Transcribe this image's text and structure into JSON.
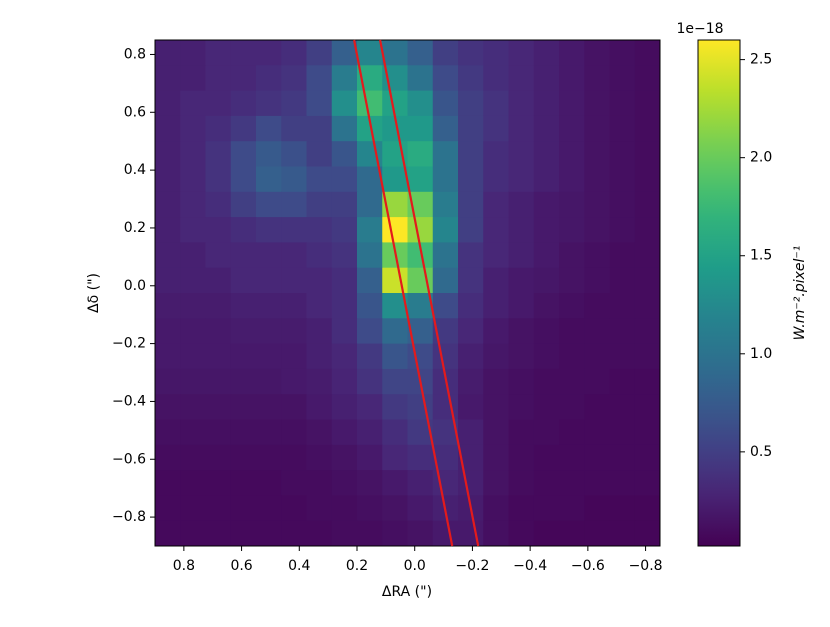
{
  "chart_data": {
    "type": "heatmap",
    "x_label": "ΔRA (\")",
    "y_label": "Δδ (\")",
    "xlim": [
      0.9,
      -0.85
    ],
    "ylim": [
      -0.9,
      0.85
    ],
    "xticks": [
      0.8,
      0.6,
      0.4,
      0.2,
      {
        "value": 0,
        "label": "0.0"
      },
      {
        "value": -0.2,
        "label": "−0.2"
      },
      {
        "value": -0.4,
        "label": "−0.4"
      },
      {
        "value": -0.6,
        "label": "−0.6"
      },
      {
        "value": -0.8,
        "label": "−0.8"
      }
    ],
    "yticks": [
      {
        "value": -0.8,
        "label": "−0.8"
      },
      {
        "value": -0.6,
        "label": "−0.6"
      },
      {
        "value": -0.4,
        "label": "−0.4"
      },
      {
        "value": -0.2,
        "label": "−0.2"
      },
      {
        "value": 0,
        "label": "0.0"
      },
      0.2,
      0.4,
      0.6,
      0.8
    ],
    "colormap": "viridis",
    "z": [
      [
        0.25,
        0.25,
        0.3,
        0.3,
        0.3,
        0.35,
        0.5,
        0.8,
        1.2,
        1.0,
        0.8,
        0.5,
        0.4,
        0.35,
        0.3,
        0.25,
        0.2,
        0.15,
        0.12,
        0.1
      ],
      [
        0.25,
        0.25,
        0.3,
        0.3,
        0.35,
        0.4,
        0.6,
        1.1,
        1.6,
        1.3,
        1.0,
        0.6,
        0.45,
        0.35,
        0.3,
        0.25,
        0.2,
        0.15,
        0.12,
        0.1
      ],
      [
        0.25,
        0.3,
        0.3,
        0.35,
        0.4,
        0.45,
        0.6,
        1.3,
        1.8,
        1.5,
        1.3,
        0.7,
        0.5,
        0.4,
        0.3,
        0.25,
        0.2,
        0.15,
        0.12,
        0.1
      ],
      [
        0.25,
        0.3,
        0.35,
        0.45,
        0.6,
        0.5,
        0.5,
        1.0,
        1.5,
        1.4,
        1.4,
        0.8,
        0.5,
        0.4,
        0.3,
        0.25,
        0.2,
        0.15,
        0.12,
        0.1
      ],
      [
        0.25,
        0.3,
        0.4,
        0.6,
        0.75,
        0.65,
        0.5,
        0.7,
        1.2,
        1.5,
        1.6,
        1.0,
        0.5,
        0.35,
        0.3,
        0.25,
        0.2,
        0.15,
        0.12,
        0.1
      ],
      [
        0.25,
        0.3,
        0.4,
        0.6,
        0.8,
        0.75,
        0.6,
        0.6,
        0.9,
        1.4,
        1.5,
        1.0,
        0.5,
        0.35,
        0.3,
        0.25,
        0.2,
        0.15,
        0.12,
        0.1
      ],
      [
        0.25,
        0.3,
        0.35,
        0.5,
        0.6,
        0.6,
        0.5,
        0.5,
        0.9,
        2.2,
        2.0,
        1.1,
        0.5,
        0.3,
        0.25,
        0.2,
        0.18,
        0.15,
        0.12,
        0.1
      ],
      [
        0.25,
        0.3,
        0.3,
        0.35,
        0.4,
        0.4,
        0.4,
        0.45,
        1.1,
        2.6,
        2.2,
        1.2,
        0.5,
        0.3,
        0.25,
        0.2,
        0.18,
        0.15,
        0.12,
        0.1
      ],
      [
        0.25,
        0.25,
        0.3,
        0.3,
        0.3,
        0.3,
        0.35,
        0.4,
        1.0,
        2.0,
        1.8,
        1.0,
        0.4,
        0.3,
        0.25,
        0.2,
        0.15,
        0.12,
        0.1,
        0.1
      ],
      [
        0.25,
        0.25,
        0.25,
        0.3,
        0.3,
        0.3,
        0.3,
        0.35,
        0.8,
        2.4,
        2.0,
        0.9,
        0.4,
        0.25,
        0.2,
        0.18,
        0.15,
        0.12,
        0.1,
        0.1
      ],
      [
        0.22,
        0.22,
        0.22,
        0.25,
        0.25,
        0.25,
        0.3,
        0.35,
        0.7,
        1.3,
        1.1,
        0.6,
        0.35,
        0.25,
        0.2,
        0.15,
        0.12,
        0.1,
        0.1,
        0.1
      ],
      [
        0.2,
        0.2,
        0.2,
        0.22,
        0.22,
        0.22,
        0.25,
        0.35,
        0.6,
        0.9,
        0.8,
        0.45,
        0.3,
        0.2,
        0.15,
        0.12,
        0.1,
        0.1,
        0.1,
        0.1
      ],
      [
        0.2,
        0.2,
        0.2,
        0.2,
        0.2,
        0.2,
        0.25,
        0.3,
        0.45,
        0.7,
        0.6,
        0.4,
        0.25,
        0.18,
        0.15,
        0.12,
        0.1,
        0.1,
        0.1,
        0.1
      ],
      [
        0.18,
        0.18,
        0.18,
        0.18,
        0.18,
        0.2,
        0.22,
        0.28,
        0.4,
        0.55,
        0.55,
        0.35,
        0.22,
        0.15,
        0.12,
        0.1,
        0.1,
        0.1,
        0.08,
        0.08
      ],
      [
        0.15,
        0.15,
        0.15,
        0.15,
        0.15,
        0.15,
        0.2,
        0.25,
        0.3,
        0.45,
        0.5,
        0.35,
        0.2,
        0.15,
        0.12,
        0.1,
        0.1,
        0.08,
        0.08,
        0.08
      ],
      [
        0.12,
        0.12,
        0.12,
        0.12,
        0.12,
        0.12,
        0.15,
        0.2,
        0.25,
        0.35,
        0.45,
        0.4,
        0.25,
        0.15,
        0.1,
        0.1,
        0.08,
        0.08,
        0.08,
        0.08
      ],
      [
        0.1,
        0.1,
        0.1,
        0.1,
        0.1,
        0.1,
        0.12,
        0.15,
        0.2,
        0.3,
        0.35,
        0.35,
        0.25,
        0.15,
        0.1,
        0.08,
        0.08,
        0.08,
        0.08,
        0.08
      ],
      [
        0.08,
        0.08,
        0.08,
        0.08,
        0.08,
        0.1,
        0.1,
        0.12,
        0.15,
        0.2,
        0.25,
        0.3,
        0.25,
        0.15,
        0.1,
        0.08,
        0.08,
        0.08,
        0.08,
        0.08
      ],
      [
        0.08,
        0.08,
        0.08,
        0.08,
        0.08,
        0.08,
        0.1,
        0.1,
        0.12,
        0.15,
        0.2,
        0.25,
        0.22,
        0.12,
        0.08,
        0.08,
        0.08,
        0.06,
        0.06,
        0.06
      ],
      [
        0.08,
        0.08,
        0.08,
        0.08,
        0.08,
        0.08,
        0.08,
        0.1,
        0.1,
        0.12,
        0.15,
        0.2,
        0.2,
        0.12,
        0.08,
        0.06,
        0.06,
        0.06,
        0.06,
        0.06
      ]
    ],
    "colorbar": {
      "clim": [
        0.02,
        2.6
      ],
      "ticks": [
        0.5,
        {
          "value": 1,
          "label": "1.0"
        },
        1.5,
        {
          "value": 2,
          "label": "2.0"
        },
        2.5
      ],
      "offset": "1e−18",
      "label": "W.m⁻².pixel⁻¹"
    },
    "lines": [
      {
        "x": [
          0.21,
          -0.13
        ],
        "y": [
          0.85,
          -0.9
        ],
        "color": "#e31a1c"
      },
      {
        "x": [
          0.12,
          -0.22
        ],
        "y": [
          0.85,
          -0.9
        ],
        "color": "#e31a1c"
      }
    ]
  }
}
